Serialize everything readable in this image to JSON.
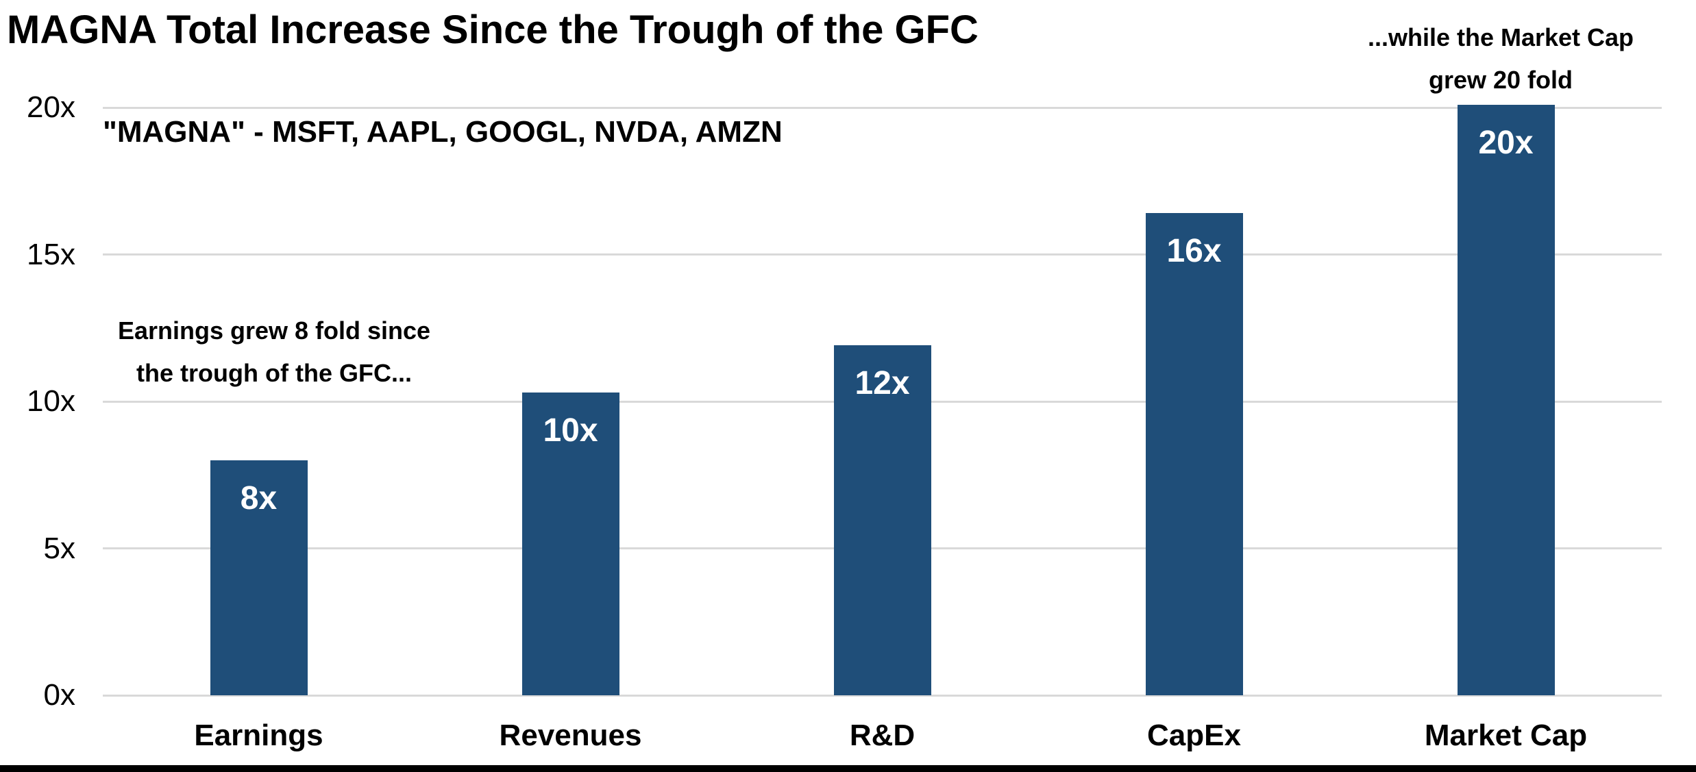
{
  "page": {
    "title": "MAGNA Total Increase Since the Trough of the GFC",
    "subtitle": "\"MAGNA\" - MSFT, AAPL, GOOGL, NVDA, AMZN"
  },
  "annotations": {
    "left": {
      "lines": [
        "Earnings grew 8 fold since",
        "the trough of the GFC..."
      ]
    },
    "right": {
      "lines": [
        "...while the Market Cap",
        "grew 20 fold"
      ]
    }
  },
  "chart_data": {
    "type": "bar",
    "title": "MAGNA Total Increase Since the Trough of the GFC",
    "subtitle_note": "\"MAGNA\" - MSFT, AAPL, GOOGL, NVDA, AMZN",
    "categories": [
      "Earnings",
      "Revenues",
      "R&D",
      "CapEx",
      "Market Cap"
    ],
    "values": [
      8,
      10.3,
      11.9,
      16.4,
      20.1
    ],
    "bar_labels": [
      "8x",
      "10x",
      "12x",
      "16x",
      "20x"
    ],
    "y_ticks": [
      "0x",
      "5x",
      "10x",
      "15x",
      "20x"
    ],
    "y_tick_values": [
      0,
      5,
      10,
      15,
      20
    ],
    "ylim": [
      0,
      20
    ],
    "xlabel": "",
    "ylabel": "",
    "grid": true,
    "legend": false,
    "colors": {
      "bar": "#1F4E79",
      "bar_label_text": "#FFFFFF",
      "gridline": "#D9D9D9",
      "text": "#000000"
    }
  }
}
